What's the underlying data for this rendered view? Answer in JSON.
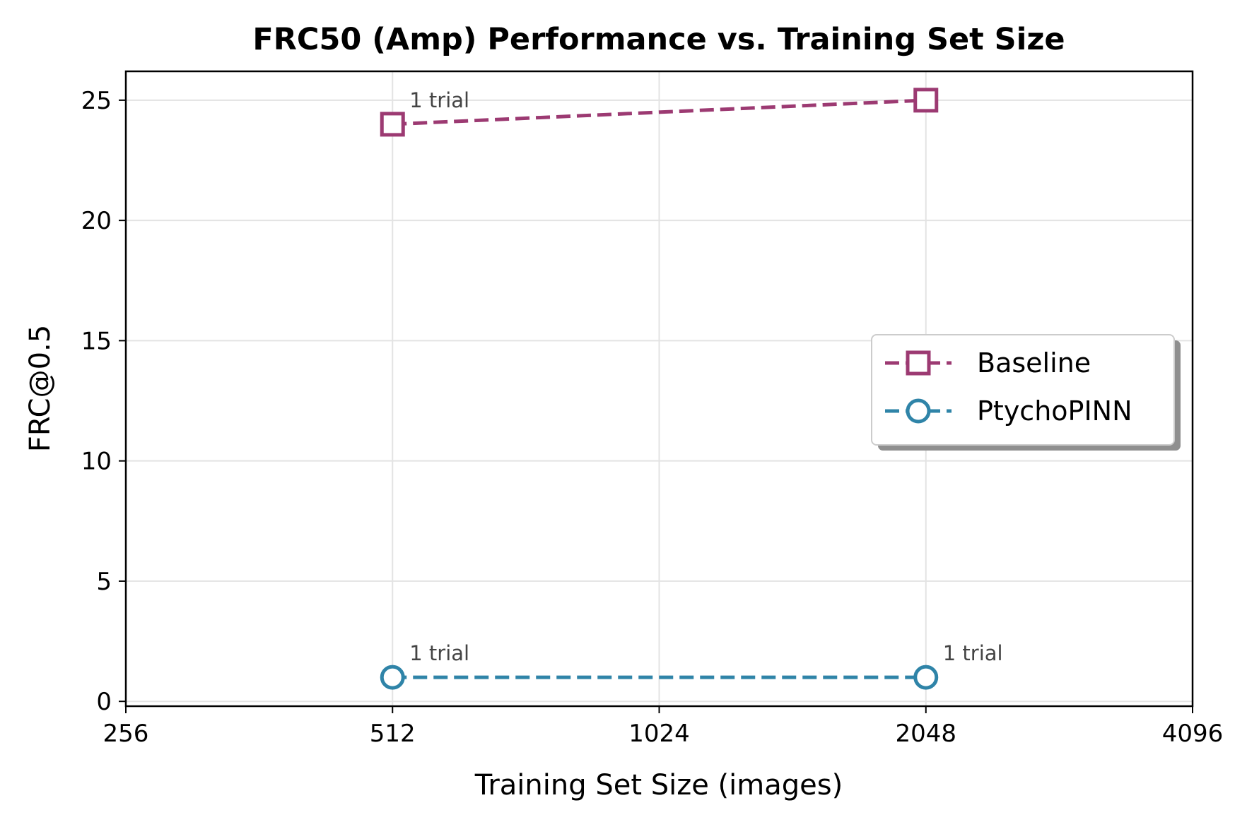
{
  "colors": {
    "baseline": "#9c3a72",
    "ptychopinn": "#2f84a8"
  },
  "chart_data": {
    "type": "line",
    "title": "FRC50 (Amp) Performance vs. Training Set Size",
    "xlabel": "Training Set Size (images)",
    "ylabel": "FRC@0.5",
    "x_scale": "log2",
    "xlim": [
      256,
      4096
    ],
    "ylim": [
      -0.2,
      26.2
    ],
    "x_ticks": [
      256,
      512,
      1024,
      2048,
      4096
    ],
    "x_tick_labels": [
      "256",
      "512",
      "1024",
      "2048",
      "4096"
    ],
    "y_ticks": [
      0,
      5,
      10,
      15,
      20,
      25
    ],
    "y_tick_labels": [
      "0",
      "5",
      "10",
      "15",
      "20",
      "25"
    ],
    "grid": true,
    "legend_position": "center-right",
    "series": [
      {
        "name": "Baseline",
        "marker": "square",
        "line_style": "dashed",
        "color_key": "baseline",
        "x": [
          512,
          2048
        ],
        "y": [
          24,
          25
        ]
      },
      {
        "name": "PtychoPINN",
        "marker": "circle",
        "line_style": "dashed",
        "color_key": "ptychopinn",
        "x": [
          512,
          2048
        ],
        "y": [
          1,
          1
        ]
      }
    ],
    "annotations": [
      {
        "text": "1 trial",
        "x": 512,
        "y": 24
      },
      {
        "text": "1 trial",
        "x": 512,
        "y": 1
      },
      {
        "text": "1 trial",
        "x": 2048,
        "y": 1
      }
    ]
  }
}
